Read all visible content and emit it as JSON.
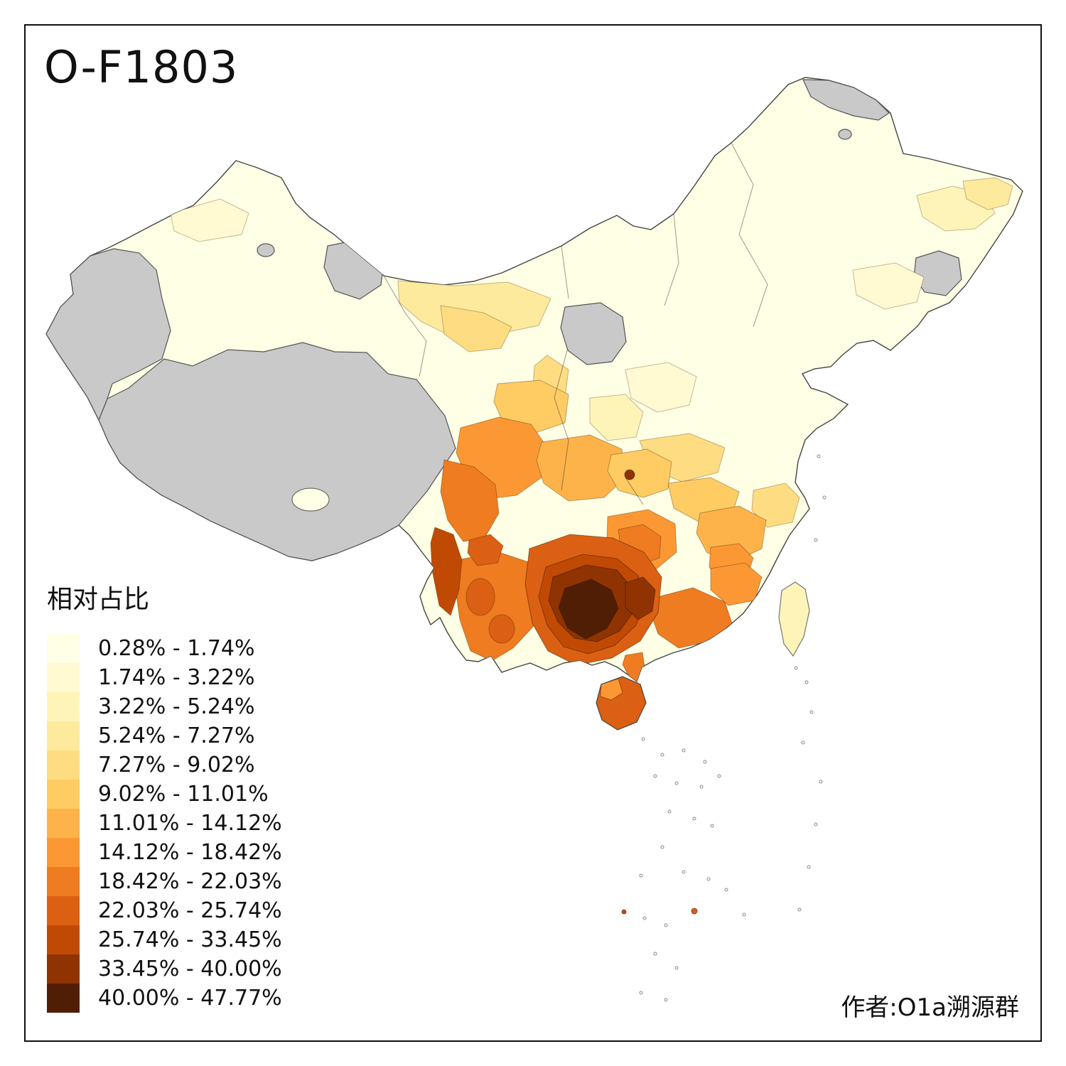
{
  "title": "O-F1803",
  "attribution": "作者:O1a溯源群",
  "legend": {
    "title": "相对占比",
    "no_data_color": "#C9C9C9",
    "items": [
      {
        "label": "0.28% - 1.74%",
        "color": "#FFFFE5"
      },
      {
        "label": "1.74% - 3.22%",
        "color": "#FFFAD1"
      },
      {
        "label": "3.22% - 5.24%",
        "color": "#FFF4B8"
      },
      {
        "label": "5.24% - 7.27%",
        "color": "#FEEA9D"
      },
      {
        "label": "7.27% - 9.02%",
        "color": "#FEDD82"
      },
      {
        "label": "9.02% - 11.01%",
        "color": "#FECC63"
      },
      {
        "label": "11.01% - 14.12%",
        "color": "#FEB34A"
      },
      {
        "label": "14.12% - 18.42%",
        "color": "#FB9834"
      },
      {
        "label": "18.42% - 22.03%",
        "color": "#EF7C21"
      },
      {
        "label": "22.03% - 25.74%",
        "color": "#DB6013"
      },
      {
        "label": "25.74% - 33.45%",
        "color": "#C04A04"
      },
      {
        "label": "33.45% - 40.00%",
        "color": "#8F3303"
      },
      {
        "label": "40.00% - 47.77%",
        "color": "#501E05"
      }
    ]
  },
  "map": {
    "region": "China",
    "type": "choropleth"
  }
}
